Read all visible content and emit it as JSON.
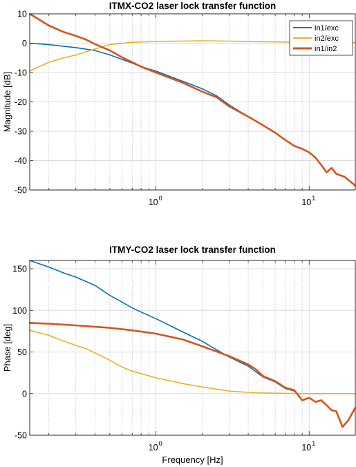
{
  "chart_data": [
    {
      "type": "line",
      "title": "ITMX-CO2 laser lock transfer function",
      "xlabel": "",
      "ylabel": "Magnitude [dB]",
      "xscale": "log",
      "xlim": [
        0.15,
        20
      ],
      "ylim": [
        -50,
        10
      ],
      "yticks": [
        10,
        0,
        -10,
        -20,
        -30,
        -40,
        -50
      ],
      "xticks": [
        {
          "value": 1,
          "label": "10",
          "exp": "0"
        },
        {
          "value": 10,
          "label": "10",
          "exp": "1"
        }
      ],
      "grid": true,
      "legend": "top-right",
      "series": [
        {
          "name": "in1/exc",
          "color": "#0072BD",
          "x": [
            0.15,
            0.2,
            0.3,
            0.4,
            0.5,
            0.6,
            0.7,
            0.8,
            1.0,
            1.5,
            2.0,
            2.5,
            3.0,
            4.0,
            5.0,
            6.0,
            7.0,
            8.0,
            9.0,
            10.0,
            11.0,
            12.0,
            13.0,
            14.0,
            15.0,
            17.0,
            20.0
          ],
          "y": [
            0,
            -0.5,
            -1.5,
            -2.5,
            -4,
            -5.5,
            -6.8,
            -8,
            -9.5,
            -13,
            -15.5,
            -18,
            -21,
            -25,
            -28,
            -30.5,
            -33,
            -35,
            -36,
            -37.2,
            -39,
            -41.5,
            -44,
            -42.5,
            -44.5,
            -45.5,
            -48.5
          ]
        },
        {
          "name": "in2/exc",
          "color": "#EDB120",
          "x": [
            0.15,
            0.2,
            0.25,
            0.3,
            0.4,
            0.5,
            0.7,
            1.0,
            2.0,
            3.0,
            5.0,
            10.0,
            20.0
          ],
          "y": [
            -9.5,
            -6.5,
            -5,
            -4,
            -2,
            -0.5,
            0.3,
            0.6,
            0.8,
            0.7,
            0.5,
            0.3,
            0.2
          ]
        },
        {
          "name": "in1/in2",
          "color": "#D95319",
          "x": [
            0.15,
            0.2,
            0.25,
            0.3,
            0.35,
            0.4,
            0.5,
            0.6,
            0.7,
            0.8,
            1.0,
            1.5,
            2.0,
            2.5,
            3.0,
            4.0,
            5.0,
            6.0,
            7.0,
            8.0,
            9.0,
            10.0,
            11.0,
            12.0,
            13.0,
            14.0,
            15.0,
            17.0,
            20.0
          ],
          "y": [
            10,
            6,
            3.8,
            2.5,
            1.2,
            -0.3,
            -2.5,
            -4.8,
            -6.5,
            -8,
            -10,
            -13.5,
            -16.5,
            -18.5,
            -21.5,
            -25,
            -28,
            -30.5,
            -33,
            -35,
            -36,
            -37.2,
            -39,
            -41.5,
            -44,
            -42.5,
            -44.5,
            -45.5,
            -48.5
          ]
        }
      ]
    },
    {
      "type": "line",
      "title": "ITMY-CO2 laser lock transfer function",
      "xlabel": "Frequency [Hz]",
      "ylabel": "Phase [deg]",
      "xscale": "log",
      "xlim": [
        0.15,
        20
      ],
      "ylim": [
        -50,
        160
      ],
      "yticks": [
        150,
        100,
        50,
        0,
        -50
      ],
      "xticks": [
        {
          "value": 1,
          "label": "10",
          "exp": "0"
        },
        {
          "value": 10,
          "label": "10",
          "exp": "1"
        }
      ],
      "grid": true,
      "series": [
        {
          "name": "in1/exc",
          "color": "#0072BD",
          "x": [
            0.15,
            0.2,
            0.25,
            0.3,
            0.4,
            0.5,
            0.6,
            0.7,
            0.8,
            1.0,
            1.5,
            2.0,
            3.0,
            4.0,
            5.0,
            6.0,
            7.0,
            8.0
          ],
          "y": [
            160,
            152,
            145,
            140,
            130,
            118,
            110,
            103,
            98,
            90,
            74,
            63,
            44,
            33,
            20,
            14,
            6,
            3
          ]
        },
        {
          "name": "in2/exc",
          "color": "#EDB120",
          "x": [
            0.15,
            0.2,
            0.25,
            0.3,
            0.35,
            0.4,
            0.5,
            0.6,
            0.7,
            0.8,
            1.0,
            1.5,
            2.0,
            3.0,
            4.0,
            5.0,
            7.0,
            10.0,
            20.0
          ],
          "y": [
            76,
            70,
            63,
            58,
            54,
            49,
            40,
            32,
            27,
            24,
            19,
            12,
            8,
            3,
            1.5,
            0.8,
            0.3,
            0,
            0
          ]
        },
        {
          "name": "in1/in2",
          "color": "#D95319",
          "x": [
            0.15,
            0.2,
            0.3,
            0.5,
            0.7,
            1.0,
            1.5,
            2.0,
            3.0,
            4.0,
            4.5,
            5.0,
            6.0,
            7.0,
            8.0,
            9.0,
            10.0,
            11.0,
            12.0,
            13.0,
            14.0,
            15.0,
            16.5,
            18.0,
            20.0
          ],
          "y": [
            85,
            84,
            82,
            79,
            76,
            72,
            65,
            57,
            45,
            35,
            29,
            21,
            15,
            7,
            4,
            -8,
            -5,
            -10,
            -8,
            -14,
            -20,
            -21,
            -40,
            -32,
            -17
          ]
        }
      ]
    }
  ]
}
